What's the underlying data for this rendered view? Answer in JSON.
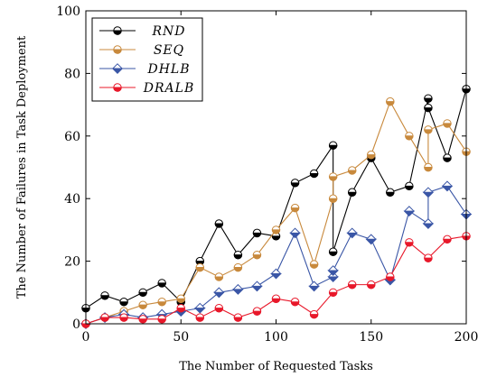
{
  "chart_data": {
    "type": "line",
    "xlabel": "The Number of Requested Tasks",
    "ylabel": "The Number of Failures in Task Deployment",
    "xlim": [
      0,
      200
    ],
    "ylim": [
      0,
      100
    ],
    "xticks": [
      0,
      50,
      100,
      150,
      200
    ],
    "yticks": [
      0,
      20,
      40,
      60,
      80,
      100
    ],
    "grid": false,
    "legend_position": "top-left",
    "series": [
      {
        "name": "RND",
        "color": "#000000",
        "x": [
          0,
          10,
          20,
          30,
          40,
          50,
          60,
          70,
          80,
          90,
          100,
          110,
          120,
          130,
          130,
          140,
          150,
          160,
          170,
          180,
          180,
          190,
          200
        ],
        "y": [
          5,
          9,
          7,
          10,
          13,
          7,
          20,
          32,
          22,
          29,
          28,
          45,
          48,
          57,
          23,
          42,
          53,
          42,
          44,
          72,
          69,
          53,
          75
        ]
      },
      {
        "name": "SEQ",
        "color": "#c8893c",
        "x": [
          0,
          10,
          20,
          30,
          40,
          50,
          60,
          70,
          80,
          90,
          100,
          110,
          120,
          130,
          130,
          140,
          150,
          160,
          170,
          180,
          180,
          190,
          200
        ],
        "y": [
          0,
          2,
          4,
          6,
          7,
          8,
          18,
          15,
          18,
          22,
          30,
          37,
          19,
          40,
          47,
          49,
          54,
          71,
          60,
          50,
          62,
          64,
          55
        ]
      },
      {
        "name": "DHLB",
        "color": "#3a56a6",
        "x": [
          0,
          10,
          20,
          30,
          40,
          50,
          60,
          70,
          80,
          90,
          100,
          110,
          120,
          130,
          130,
          140,
          150,
          160,
          170,
          180,
          180,
          190,
          200
        ],
        "y": [
          0,
          2,
          3,
          2,
          3,
          4,
          5,
          10,
          11,
          12,
          16,
          29,
          12,
          15,
          17,
          29,
          27,
          14,
          36,
          32,
          42,
          44,
          35
        ]
      },
      {
        "name": "DRALB",
        "color": "#e8182a",
        "x": [
          0,
          10,
          20,
          30,
          40,
          50,
          60,
          70,
          80,
          90,
          100,
          110,
          120,
          130,
          140,
          150,
          160,
          170,
          180,
          190,
          200
        ],
        "y": [
          0,
          2,
          2,
          1.5,
          1.5,
          5,
          2,
          5,
          2,
          4,
          8,
          7,
          3,
          10,
          12.5,
          12.5,
          15,
          26,
          21,
          27,
          28
        ]
      }
    ]
  }
}
